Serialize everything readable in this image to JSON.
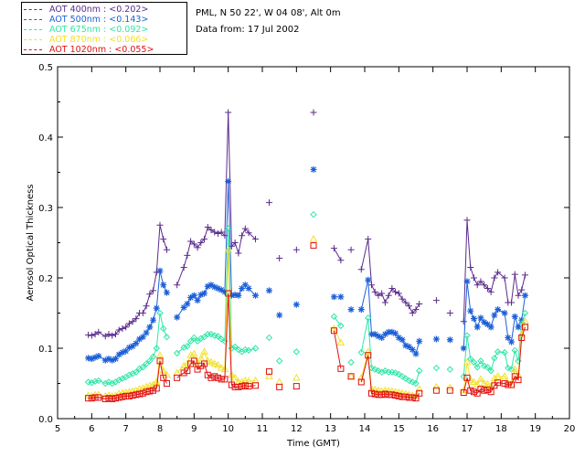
{
  "legend": {
    "items": [
      {
        "label": "AOT  400nm : <0.202>",
        "color": "#5b2a8c"
      },
      {
        "label": "AOT  500nm : <0.143>",
        "color": "#1c5fd8"
      },
      {
        "label": "AOT  675nm : <0.092>",
        "color": "#2ee6a6"
      },
      {
        "label": "AOT  870nm : <0.066>",
        "color": "#f2e02a"
      },
      {
        "label": "AOT 1020nm : <0.055>",
        "color": "#e01010"
      }
    ]
  },
  "info": {
    "location": "PML, N 50 22', W 04 08', Alt 0m",
    "date": "Data from: 17 Jul 2002"
  },
  "chart_data": {
    "type": "line",
    "xlabel": "Time (GMT)",
    "ylabel": "Aerosol Optical Thickness",
    "xlim": [
      5,
      20
    ],
    "ylim": [
      0,
      0.5
    ],
    "xticks": [
      "5",
      "6",
      "7",
      "8",
      "9",
      "10",
      "11",
      "12",
      "13",
      "14",
      "15",
      "16",
      "17",
      "18",
      "19",
      "20"
    ],
    "yticks": [
      "0.0",
      "0.1",
      "0.2",
      "0.3",
      "0.4",
      "0.5"
    ],
    "x": [
      5.9,
      6.0,
      6.1,
      6.2,
      6.4,
      6.5,
      6.6,
      6.7,
      6.8,
      6.9,
      7.0,
      7.1,
      7.2,
      7.3,
      7.4,
      7.5,
      7.6,
      7.7,
      7.8,
      7.9,
      8.0,
      8.1,
      8.2,
      8.5,
      8.7,
      8.8,
      8.9,
      9.0,
      9.1,
      9.2,
      9.3,
      9.4,
      9.5,
      9.6,
      9.7,
      9.8,
      9.9,
      10.0,
      10.1,
      10.2,
      10.3,
      10.4,
      10.5,
      10.6,
      10.8,
      11.2,
      11.5,
      12.0,
      12.5,
      13.1,
      13.3,
      13.6,
      13.9,
      14.1,
      14.2,
      14.3,
      14.4,
      14.5,
      14.6,
      14.7,
      14.8,
      14.9,
      15.0,
      15.1,
      15.2,
      15.3,
      15.4,
      15.5,
      15.6,
      16.1,
      16.5,
      16.9,
      17.0,
      17.1,
      17.2,
      17.3,
      17.4,
      17.5,
      17.6,
      17.7,
      17.8,
      17.9,
      18.1,
      18.2,
      18.3,
      18.4,
      18.5,
      18.6,
      18.7
    ],
    "series": [
      {
        "name": "AOT 400nm",
        "marker": "plus",
        "values": [
          0.119,
          0.118,
          0.12,
          0.123,
          0.117,
          0.12,
          0.118,
          0.12,
          0.126,
          0.128,
          0.13,
          0.135,
          0.138,
          0.142,
          0.15,
          0.15,
          0.16,
          0.177,
          0.182,
          0.208,
          0.275,
          0.255,
          0.24,
          0.19,
          0.215,
          0.232,
          0.252,
          0.248,
          0.243,
          0.25,
          0.255,
          0.272,
          0.268,
          0.265,
          0.263,
          0.265,
          0.26,
          0.435,
          0.245,
          0.25,
          0.235,
          0.26,
          0.27,
          0.264,
          0.255,
          0.307,
          0.228,
          0.24,
          0.435,
          0.242,
          0.225,
          0.24,
          0.212,
          0.255,
          0.19,
          0.18,
          0.175,
          0.178,
          0.165,
          0.175,
          0.185,
          0.18,
          0.178,
          0.17,
          0.165,
          0.16,
          0.15,
          0.155,
          0.163,
          0.168,
          0.15,
          0.138,
          0.282,
          0.215,
          0.2,
          0.19,
          0.195,
          0.19,
          0.185,
          0.18,
          0.2,
          0.208,
          0.2,
          0.165,
          0.165,
          0.205,
          0.175,
          0.183,
          0.204
        ]
      },
      {
        "name": "AOT 500nm",
        "marker": "star",
        "values": [
          0.086,
          0.085,
          0.087,
          0.089,
          0.083,
          0.085,
          0.083,
          0.085,
          0.091,
          0.094,
          0.096,
          0.101,
          0.103,
          0.107,
          0.113,
          0.116,
          0.122,
          0.13,
          0.14,
          0.157,
          0.21,
          0.19,
          0.179,
          0.144,
          0.158,
          0.163,
          0.172,
          0.175,
          0.168,
          0.176,
          0.178,
          0.188,
          0.19,
          0.187,
          0.185,
          0.183,
          0.18,
          0.337,
          0.175,
          0.176,
          0.175,
          0.185,
          0.19,
          0.185,
          0.175,
          0.182,
          0.147,
          0.162,
          0.354,
          0.173,
          0.173,
          0.155,
          0.155,
          0.197,
          0.12,
          0.12,
          0.117,
          0.115,
          0.12,
          0.123,
          0.123,
          0.121,
          0.115,
          0.112,
          0.104,
          0.102,
          0.098,
          0.092,
          0.11,
          0.113,
          0.112,
          0.1,
          0.195,
          0.153,
          0.142,
          0.13,
          0.143,
          0.137,
          0.134,
          0.13,
          0.147,
          0.155,
          0.15,
          0.115,
          0.109,
          0.145,
          0.13,
          0.14,
          0.175
        ]
      },
      {
        "name": "AOT 675nm",
        "marker": "diamond",
        "values": [
          0.052,
          0.051,
          0.053,
          0.054,
          0.05,
          0.052,
          0.05,
          0.052,
          0.055,
          0.057,
          0.059,
          0.062,
          0.064,
          0.066,
          0.071,
          0.073,
          0.078,
          0.082,
          0.088,
          0.1,
          0.15,
          0.128,
          0.116,
          0.093,
          0.101,
          0.103,
          0.11,
          0.115,
          0.11,
          0.114,
          0.116,
          0.12,
          0.12,
          0.118,
          0.117,
          0.113,
          0.11,
          0.27,
          0.1,
          0.102,
          0.098,
          0.095,
          0.098,
          0.097,
          0.1,
          0.115,
          0.082,
          0.095,
          0.29,
          0.145,
          0.132,
          0.08,
          0.094,
          0.143,
          0.072,
          0.07,
          0.068,
          0.066,
          0.068,
          0.066,
          0.066,
          0.065,
          0.063,
          0.06,
          0.057,
          0.054,
          0.052,
          0.05,
          0.068,
          0.072,
          0.07,
          0.06,
          0.118,
          0.085,
          0.08,
          0.073,
          0.082,
          0.075,
          0.073,
          0.068,
          0.086,
          0.095,
          0.094,
          0.072,
          0.07,
          0.097,
          0.082,
          0.135,
          0.15
        ]
      },
      {
        "name": "AOT 870nm",
        "marker": "triangle",
        "values": [
          0.033,
          0.032,
          0.034,
          0.034,
          0.032,
          0.033,
          0.032,
          0.033,
          0.035,
          0.036,
          0.037,
          0.038,
          0.039,
          0.04,
          0.042,
          0.043,
          0.045,
          0.047,
          0.048,
          0.052,
          0.09,
          0.068,
          0.062,
          0.065,
          0.075,
          0.078,
          0.09,
          0.092,
          0.078,
          0.085,
          0.095,
          0.082,
          0.08,
          0.078,
          0.076,
          0.072,
          0.07,
          0.24,
          0.062,
          0.058,
          0.052,
          0.052,
          0.054,
          0.053,
          0.054,
          0.06,
          0.052,
          0.058,
          0.255,
          0.128,
          0.108,
          0.06,
          0.058,
          0.095,
          0.042,
          0.041,
          0.04,
          0.039,
          0.04,
          0.039,
          0.039,
          0.038,
          0.037,
          0.036,
          0.035,
          0.034,
          0.033,
          0.032,
          0.042,
          0.045,
          0.044,
          0.04,
          0.08,
          0.055,
          0.052,
          0.048,
          0.056,
          0.05,
          0.049,
          0.046,
          0.057,
          0.06,
          0.06,
          0.05,
          0.05,
          0.07,
          0.062,
          0.12,
          0.138
        ]
      },
      {
        "name": "AOT 1020nm",
        "marker": "square",
        "values": [
          0.029,
          0.029,
          0.03,
          0.03,
          0.028,
          0.029,
          0.028,
          0.029,
          0.03,
          0.031,
          0.032,
          0.032,
          0.033,
          0.034,
          0.035,
          0.036,
          0.038,
          0.039,
          0.04,
          0.043,
          0.082,
          0.058,
          0.05,
          0.058,
          0.065,
          0.068,
          0.078,
          0.082,
          0.07,
          0.075,
          0.078,
          0.062,
          0.058,
          0.06,
          0.058,
          0.056,
          0.056,
          0.178,
          0.048,
          0.045,
          0.045,
          0.046,
          0.047,
          0.046,
          0.047,
          0.067,
          0.045,
          0.046,
          0.246,
          0.125,
          0.071,
          0.06,
          0.052,
          0.09,
          0.036,
          0.035,
          0.034,
          0.034,
          0.035,
          0.034,
          0.034,
          0.033,
          0.032,
          0.031,
          0.031,
          0.03,
          0.03,
          0.029,
          0.036,
          0.04,
          0.04,
          0.037,
          0.058,
          0.04,
          0.038,
          0.036,
          0.042,
          0.04,
          0.041,
          0.038,
          0.047,
          0.051,
          0.05,
          0.048,
          0.048,
          0.06,
          0.055,
          0.115,
          0.13
        ]
      }
    ]
  }
}
